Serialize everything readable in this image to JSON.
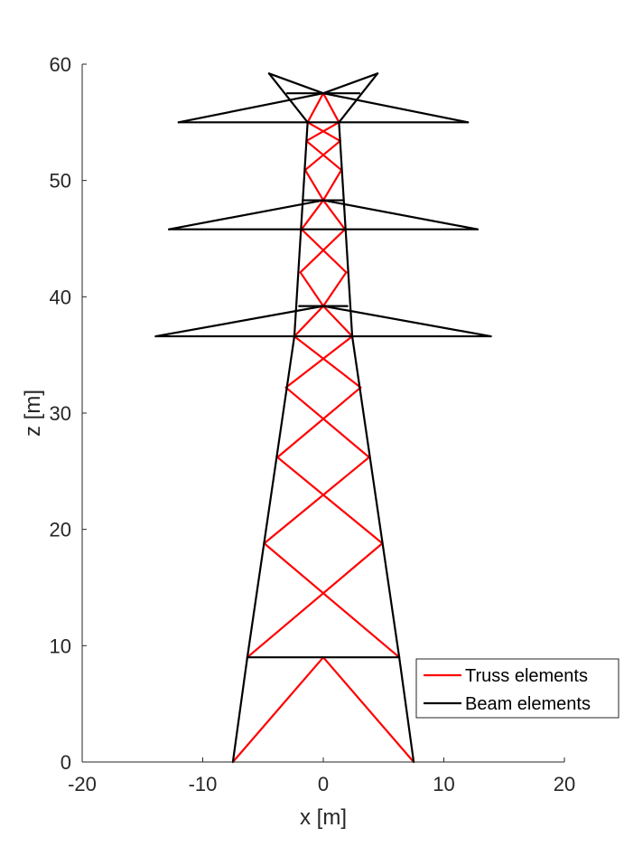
{
  "chart_data": {
    "type": "line",
    "title": "",
    "xlabel": "x [m]",
    "ylabel": "z [m]",
    "xlim": [
      -20,
      20
    ],
    "ylim": [
      0,
      60
    ],
    "xticks": [
      -20,
      -10,
      0,
      10,
      20
    ],
    "yticks": [
      0,
      10,
      20,
      30,
      40,
      50,
      60
    ],
    "xtick_labels": [
      "-20",
      "-10",
      "0",
      "10",
      "20"
    ],
    "ytick_labels": [
      "0",
      "10",
      "20",
      "30",
      "40",
      "50",
      "60"
    ],
    "grid": false,
    "legend_position": "bottom-right",
    "series": [
      {
        "name": "Truss elements",
        "color": "#ff0000",
        "segments": [
          [
            [
              -7.5,
              0
            ],
            [
              0,
              9
            ]
          ],
          [
            [
              0,
              9
            ],
            [
              7.5,
              0
            ]
          ],
          [
            [
              -6.3,
              9
            ],
            [
              4.9,
              18.8
            ]
          ],
          [
            [
              6.3,
              9
            ],
            [
              -4.9,
              18.8
            ]
          ],
          [
            [
              -4.9,
              18.8
            ],
            [
              3.8,
              26.2
            ]
          ],
          [
            [
              4.9,
              18.8
            ],
            [
              -3.8,
              26.2
            ]
          ],
          [
            [
              -3.8,
              26.2
            ],
            [
              3.1,
              32.2
            ]
          ],
          [
            [
              3.8,
              26.2
            ],
            [
              -3.1,
              32.2
            ]
          ],
          [
            [
              -3.1,
              32.2
            ],
            [
              2.4,
              36.6
            ]
          ],
          [
            [
              3.1,
              32.2
            ],
            [
              -2.4,
              36.6
            ]
          ],
          [
            [
              -2.4,
              36.6
            ],
            [
              0,
              39.2
            ]
          ],
          [
            [
              2.4,
              36.6
            ],
            [
              0,
              39.2
            ]
          ],
          [
            [
              0,
              39.2
            ],
            [
              1.9,
              42.1
            ]
          ],
          [
            [
              0,
              39.2
            ],
            [
              -1.9,
              42.1
            ]
          ],
          [
            [
              -1.9,
              42.1
            ],
            [
              1.8,
              45.8
            ]
          ],
          [
            [
              1.9,
              42.1
            ],
            [
              -1.8,
              45.8
            ]
          ],
          [
            [
              -1.8,
              45.8
            ],
            [
              0,
              48.3
            ]
          ],
          [
            [
              1.8,
              45.8
            ],
            [
              0,
              48.3
            ]
          ],
          [
            [
              0,
              48.3
            ],
            [
              1.5,
              50.9
            ]
          ],
          [
            [
              0,
              48.3
            ],
            [
              -1.5,
              50.9
            ]
          ],
          [
            [
              -1.5,
              50.9
            ],
            [
              1.4,
              53.4
            ]
          ],
          [
            [
              1.5,
              50.9
            ],
            [
              -1.4,
              53.4
            ]
          ],
          [
            [
              -1.4,
              53.4
            ],
            [
              1.3,
              55.0
            ]
          ],
          [
            [
              1.4,
              53.4
            ],
            [
              -1.3,
              55.0
            ]
          ],
          [
            [
              -1.3,
              55.0
            ],
            [
              0,
              57.5
            ]
          ],
          [
            [
              1.3,
              55.0
            ],
            [
              0,
              57.5
            ]
          ]
        ]
      },
      {
        "name": "Beam elements",
        "color": "#000000",
        "segments": [
          [
            [
              -7.5,
              0
            ],
            [
              -6.3,
              9
            ]
          ],
          [
            [
              -6.3,
              9
            ],
            [
              -2.4,
              36.6
            ]
          ],
          [
            [
              -2.4,
              36.6
            ],
            [
              -1.3,
              55.0
            ]
          ],
          [
            [
              7.5,
              0
            ],
            [
              6.3,
              9
            ]
          ],
          [
            [
              6.3,
              9
            ],
            [
              2.4,
              36.6
            ]
          ],
          [
            [
              2.4,
              36.6
            ],
            [
              1.3,
              55.0
            ]
          ],
          [
            [
              -6.3,
              9
            ],
            [
              6.3,
              9
            ]
          ],
          [
            [
              -13.9,
              36.6
            ],
            [
              13.9,
              36.6
            ]
          ],
          [
            [
              -13.9,
              36.6
            ],
            [
              0,
              39.2
            ]
          ],
          [
            [
              13.9,
              36.6
            ],
            [
              0,
              39.2
            ]
          ],
          [
            [
              -2.0,
              39.2
            ],
            [
              2.0,
              39.2
            ]
          ],
          [
            [
              -12.8,
              45.8
            ],
            [
              12.8,
              45.8
            ]
          ],
          [
            [
              -12.8,
              45.8
            ],
            [
              0,
              48.3
            ]
          ],
          [
            [
              12.8,
              45.8
            ],
            [
              0,
              48.3
            ]
          ],
          [
            [
              -1.7,
              48.3
            ],
            [
              1.7,
              48.3
            ]
          ],
          [
            [
              -12.0,
              55.0
            ],
            [
              12.0,
              55.0
            ]
          ],
          [
            [
              -12.0,
              55.0
            ],
            [
              0,
              57.5
            ]
          ],
          [
            [
              12.0,
              55.0
            ],
            [
              0,
              57.5
            ]
          ],
          [
            [
              -3.0,
              57.5
            ],
            [
              3.0,
              57.5
            ]
          ],
          [
            [
              -1.3,
              55.0
            ],
            [
              -4.5,
              59.2
            ]
          ],
          [
            [
              1.3,
              55.0
            ],
            [
              4.5,
              59.2
            ]
          ],
          [
            [
              -4.5,
              59.2
            ],
            [
              0,
              57.5
            ]
          ],
          [
            [
              4.5,
              59.2
            ],
            [
              0,
              57.5
            ]
          ]
        ]
      }
    ]
  }
}
